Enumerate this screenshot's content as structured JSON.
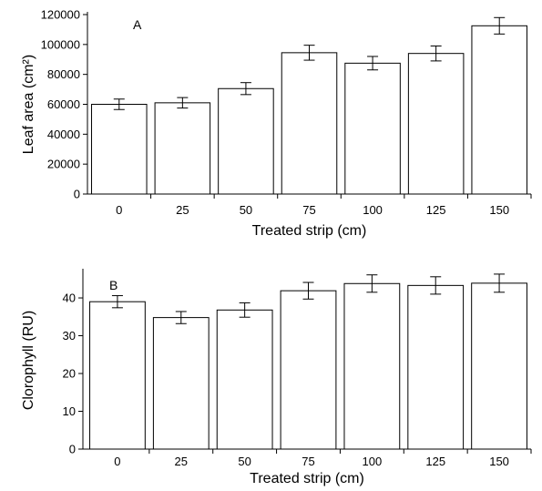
{
  "chart_data": [
    {
      "type": "bar",
      "panel_label": "A",
      "categories": [
        "0",
        "25",
        "50",
        "75",
        "100",
        "125",
        "150"
      ],
      "values": [
        60000,
        61000,
        70500,
        94500,
        87500,
        94000,
        112500
      ],
      "errors": [
        3500,
        3500,
        4000,
        5000,
        4500,
        5000,
        5500
      ],
      "xlabel": "Treated strip (cm)",
      "ylabel": "Leaf area (cm²)",
      "ylim": [
        0,
        120000
      ],
      "yticks": [
        0,
        20000,
        40000,
        60000,
        80000,
        100000,
        120000
      ],
      "ytick_labels": [
        "0",
        "20000",
        "40000",
        "60000",
        "80000",
        "100000",
        "120000"
      ],
      "grid": false
    },
    {
      "type": "bar",
      "panel_label": "B",
      "categories": [
        "0",
        "25",
        "50",
        "75",
        "100",
        "125",
        "150"
      ],
      "values": [
        39.0,
        34.8,
        36.8,
        41.9,
        43.8,
        43.3,
        43.9
      ],
      "errors": [
        1.6,
        1.6,
        1.9,
        2.2,
        2.3,
        2.3,
        2.4
      ],
      "xlabel": "Treated strip (cm)",
      "ylabel": "Clorophyll (RU)",
      "ylim": [
        0,
        47
      ],
      "yticks": [
        0,
        10,
        20,
        30,
        40
      ],
      "ytick_labels": [
        "0",
        "10",
        "20",
        "30",
        "40"
      ],
      "grid": false
    }
  ]
}
